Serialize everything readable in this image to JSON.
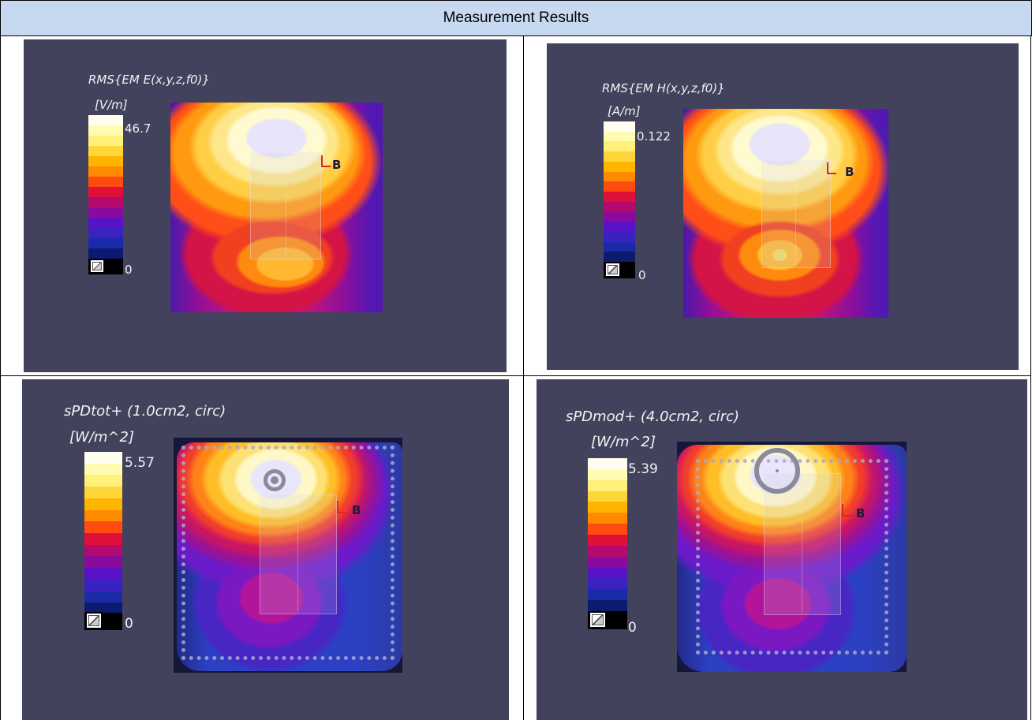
{
  "header": {
    "title": "Measurement Results"
  },
  "colorbar": [
    "#fffef0",
    "#fffbb0",
    "#fff07a",
    "#ffd63a",
    "#ffb400",
    "#ff8a00",
    "#ff4a10",
    "#e0103a",
    "#b40a6e",
    "#8a0a9e",
    "#5a12c8",
    "#3a22c0",
    "#1a2aa8",
    "#0c1a70"
  ],
  "plots": [
    {
      "title": "RMS{EM E(x,y,z,f0)}",
      "unit": "[V/m]",
      "max": "46.7",
      "min": "0"
    },
    {
      "title": "RMS{EM H(x,y,z,f0)}",
      "unit": "[A/m]",
      "max": "0.122",
      "min": "0"
    },
    {
      "title": "sPDtot+ (1.0cm2, circ)",
      "unit": "[W/m^2]",
      "max": "5.57",
      "min": "0"
    },
    {
      "title": "sPDmod+ (4.0cm2, circ)",
      "unit": "[W/m^2]",
      "max": "5.39",
      "min": "0"
    }
  ],
  "axis_marker": "B"
}
